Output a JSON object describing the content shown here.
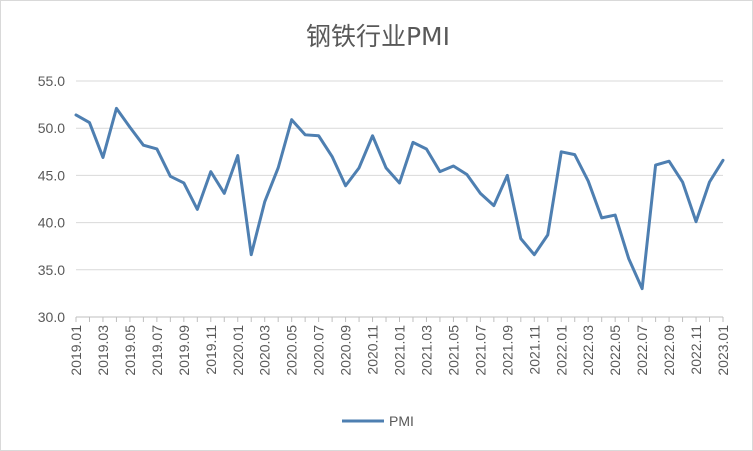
{
  "chart_data": {
    "type": "line",
    "title": "钢铁行业PMI",
    "xlabel": "",
    "ylabel": "",
    "ylim": [
      30,
      55
    ],
    "yticks": [
      "30.0",
      "35.0",
      "40.0",
      "45.0",
      "50.0",
      "55.0"
    ],
    "ytick_values": [
      30,
      35,
      40,
      45,
      50,
      55
    ],
    "grid": true,
    "legend": "bottom",
    "x": [
      "2019.01",
      "2019.02",
      "2019.03",
      "2019.04",
      "2019.05",
      "2019.06",
      "2019.07",
      "2019.08",
      "2019.09",
      "2019.10",
      "2019.11",
      "2019.12",
      "2020.01",
      "2020.02",
      "2020.03",
      "2020.04",
      "2020.05",
      "2020.06",
      "2020.07",
      "2020.08",
      "2020.09",
      "2020.10",
      "2020.11",
      "2020.12",
      "2021.01",
      "2021.02",
      "2021.03",
      "2021.04",
      "2021.05",
      "2021.06",
      "2021.07",
      "2021.08",
      "2021.09",
      "2021.10",
      "2021.11",
      "2021.12",
      "2022.01",
      "2022.02",
      "2022.03",
      "2022.04",
      "2022.05",
      "2022.06",
      "2022.07",
      "2022.08",
      "2022.09",
      "2022.10",
      "2022.11",
      "2022.12",
      "2023.01"
    ],
    "xtick_labels": [
      "2019.01",
      "2019.03",
      "2019.05",
      "2019.07",
      "2019.09",
      "2019.11",
      "2020.01",
      "2020.03",
      "2020.05",
      "2020.07",
      "2020.09",
      "2020.11",
      "2021.01",
      "2021.03",
      "2021.05",
      "2021.07",
      "2021.09",
      "2021.11",
      "2022.01",
      "2022.03",
      "2022.05",
      "2022.07",
      "2022.09",
      "2022.11",
      "2023.01"
    ],
    "series": [
      {
        "name": "PMI",
        "color": "#4e7fb1",
        "values": [
          51.4,
          50.6,
          46.9,
          52.1,
          50.1,
          48.2,
          47.8,
          44.9,
          44.2,
          41.4,
          45.4,
          43.1,
          47.1,
          36.6,
          42.2,
          45.8,
          50.9,
          49.3,
          49.2,
          47.0,
          43.9,
          45.8,
          49.2,
          45.8,
          44.2,
          48.5,
          47.8,
          45.4,
          46.0,
          45.1,
          43.1,
          41.8,
          45.0,
          38.3,
          36.6,
          38.7,
          47.5,
          47.2,
          44.4,
          40.5,
          40.8,
          36.2,
          33.0,
          46.1,
          46.5,
          44.3,
          40.1,
          44.3,
          46.6
        ]
      }
    ]
  }
}
